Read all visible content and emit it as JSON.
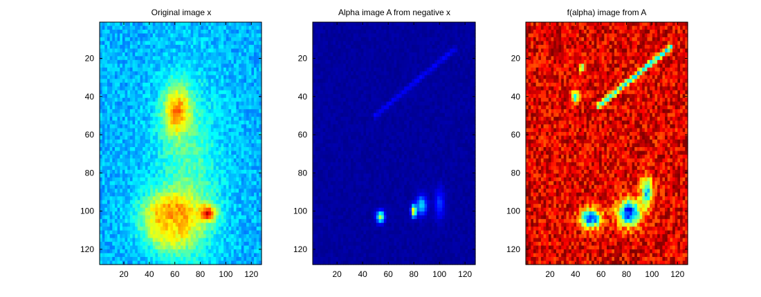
{
  "chart_data": [
    {
      "type": "heatmap",
      "title": "Original image x",
      "colormap": "jet",
      "xlim": [
        1,
        128
      ],
      "ylim": [
        1,
        128
      ],
      "y_reversed": true,
      "xticks": [
        20,
        40,
        60,
        80,
        100,
        120
      ],
      "yticks": [
        20,
        40,
        60,
        80,
        100,
        120
      ],
      "xtick_labels": [
        "20",
        "40",
        "60",
        "80",
        "100",
        "120"
      ],
      "ytick_labels": [
        "20",
        "40",
        "60",
        "80",
        "100",
        "120"
      ],
      "grid": false,
      "background_level": 0.3,
      "features": [
        {
          "kind": "band",
          "x": 70,
          "y": 85,
          "rx": 26,
          "ry": 55,
          "level": 0.45
        },
        {
          "kind": "blob",
          "x": 62,
          "y": 48,
          "rx": 11,
          "ry": 13,
          "level": 0.75
        },
        {
          "kind": "blob",
          "x": 58,
          "y": 103,
          "rx": 22,
          "ry": 12,
          "level": 0.8
        },
        {
          "kind": "blob",
          "x": 86,
          "y": 101,
          "rx": 6,
          "ry": 4,
          "level": 0.9
        },
        {
          "kind": "blob",
          "x": 56,
          "y": 110,
          "rx": 14,
          "ry": 10,
          "level": 0.65
        }
      ]
    },
    {
      "type": "heatmap",
      "title": "Alpha image A from negative x",
      "colormap": "jet",
      "xlim": [
        1,
        128
      ],
      "ylim": [
        1,
        128
      ],
      "y_reversed": true,
      "xticks": [
        20,
        40,
        60,
        80,
        100,
        120
      ],
      "yticks": [
        20,
        40,
        60,
        80,
        100,
        120
      ],
      "xtick_labels": [
        "20",
        "40",
        "60",
        "80",
        "100",
        "120"
      ],
      "ytick_labels": [
        "20",
        "40",
        "60",
        "80",
        "100",
        "120"
      ],
      "grid": false,
      "background_level": 0.03,
      "features": [
        {
          "kind": "blob",
          "x": 54,
          "y": 103,
          "rx": 3,
          "ry": 3,
          "level": 0.55
        },
        {
          "kind": "blob",
          "x": 80,
          "y": 100,
          "rx": 2,
          "ry": 3,
          "level": 0.75
        },
        {
          "kind": "blob",
          "x": 86,
          "y": 97,
          "rx": 4,
          "ry": 5,
          "level": 0.35
        },
        {
          "kind": "blob",
          "x": 100,
          "y": 96,
          "rx": 4,
          "ry": 8,
          "level": 0.18
        },
        {
          "kind": "line",
          "x1": 50,
          "y1": 50,
          "x2": 112,
          "y2": 15,
          "level": 0.12
        }
      ]
    },
    {
      "type": "heatmap",
      "title": "f(alpha) image from A",
      "colormap": "jet",
      "xlim": [
        1,
        128
      ],
      "ylim": [
        1,
        128
      ],
      "y_reversed": true,
      "xticks": [
        20,
        40,
        60,
        80,
        100,
        120
      ],
      "yticks": [
        20,
        40,
        60,
        80,
        100,
        120
      ],
      "xtick_labels": [
        "20",
        "40",
        "60",
        "80",
        "100",
        "120"
      ],
      "ytick_labels": [
        "20",
        "40",
        "60",
        "80",
        "100",
        "120"
      ],
      "grid": false,
      "background_level": 0.9,
      "features": [
        {
          "kind": "blob",
          "x": 52,
          "y": 104,
          "rx": 8,
          "ry": 5,
          "level": 0.15
        },
        {
          "kind": "blob",
          "x": 82,
          "y": 101,
          "rx": 9,
          "ry": 7,
          "level": 0.12
        },
        {
          "kind": "blob",
          "x": 96,
          "y": 90,
          "rx": 5,
          "ry": 8,
          "level": 0.35
        },
        {
          "kind": "blob",
          "x": 40,
          "y": 40,
          "rx": 3,
          "ry": 3,
          "level": 0.35
        },
        {
          "kind": "blob",
          "x": 45,
          "y": 25,
          "rx": 2,
          "ry": 2,
          "level": 0.4
        },
        {
          "kind": "line",
          "x1": 58,
          "y1": 45,
          "x2": 115,
          "y2": 14,
          "level": 0.35
        }
      ]
    }
  ]
}
